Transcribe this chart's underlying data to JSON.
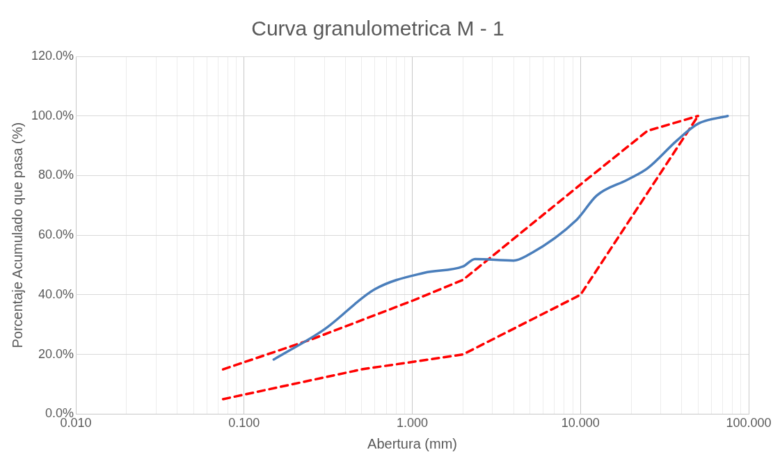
{
  "chart_data": {
    "type": "line",
    "title": "Curva granulometrica M - 1",
    "xlabel": "Abertura (mm)",
    "ylabel": "Porcentaje Acumulado que pasa (%)",
    "log": "x",
    "grid": true,
    "legend": false,
    "marker": "none",
    "xlim": [
      0.01,
      100
    ],
    "ylim": [
      0,
      120
    ],
    "xticks": [
      {
        "value": 0.01,
        "label": "0.010"
      },
      {
        "value": 0.02,
        "label": null
      },
      {
        "value": 0.03,
        "label": null
      },
      {
        "value": 0.04,
        "label": null
      },
      {
        "value": 0.05,
        "label": null
      },
      {
        "value": 0.06,
        "label": null
      },
      {
        "value": 0.07,
        "label": null
      },
      {
        "value": 0.08,
        "label": null
      },
      {
        "value": 0.09,
        "label": null
      },
      {
        "value": 0.1,
        "label": "0.100"
      },
      {
        "value": 0.2,
        "label": null
      },
      {
        "value": 0.3,
        "label": null
      },
      {
        "value": 0.4,
        "label": null
      },
      {
        "value": 0.5,
        "label": null
      },
      {
        "value": 0.6,
        "label": null
      },
      {
        "value": 0.7,
        "label": null
      },
      {
        "value": 0.8,
        "label": null
      },
      {
        "value": 0.9,
        "label": null
      },
      {
        "value": 1,
        "label": "1.000"
      },
      {
        "value": 2,
        "label": null
      },
      {
        "value": 3,
        "label": null
      },
      {
        "value": 4,
        "label": null
      },
      {
        "value": 5,
        "label": null
      },
      {
        "value": 6,
        "label": null
      },
      {
        "value": 7,
        "label": null
      },
      {
        "value": 8,
        "label": null
      },
      {
        "value": 9,
        "label": null
      },
      {
        "value": 10,
        "label": "10.000"
      },
      {
        "value": 20,
        "label": null
      },
      {
        "value": 30,
        "label": null
      },
      {
        "value": 40,
        "label": null
      },
      {
        "value": 50,
        "label": null
      },
      {
        "value": 60,
        "label": null
      },
      {
        "value": 70,
        "label": null
      },
      {
        "value": 80,
        "label": null
      },
      {
        "value": 90,
        "label": null
      },
      {
        "value": 100,
        "label": "100.000"
      }
    ],
    "yticks": [
      {
        "value": 0,
        "label": "0.0%"
      },
      {
        "value": 20,
        "label": "20.0%"
      },
      {
        "value": 40,
        "label": "40.0%"
      },
      {
        "value": 60,
        "label": "60.0%"
      },
      {
        "value": 80,
        "label": "80.0%"
      },
      {
        "value": 100,
        "label": "100.0%"
      },
      {
        "value": 120,
        "label": "120.0%"
      }
    ],
    "series": [
      {
        "color": "#4a7ebb",
        "line_style": "solid",
        "x": [
          0.15,
          0.3,
          0.6,
          1.18,
          2.0,
          2.36,
          4.0,
          4.75,
          9.5,
          12.5,
          19,
          25,
          37.5,
          50,
          75
        ],
        "values": [
          18.3,
          28.4,
          41.9,
          47.4,
          49.5,
          52,
          51.5,
          53,
          65.2,
          73.3,
          78.6,
          82.4,
          91.8,
          97.4,
          100
        ]
      },
      {
        "color": "#ff0000",
        "line_style": "dashed",
        "x": [
          0.075,
          0.25,
          1,
          2,
          10,
          25,
          50
        ],
        "values": [
          15,
          25,
          38,
          45,
          77,
          95,
          100
        ]
      },
      {
        "color": "#ff0000",
        "line_style": "dashed",
        "x": [
          0.075,
          0.5,
          2,
          10,
          50
        ],
        "values": [
          5,
          15,
          20,
          40,
          100
        ]
      }
    ]
  }
}
